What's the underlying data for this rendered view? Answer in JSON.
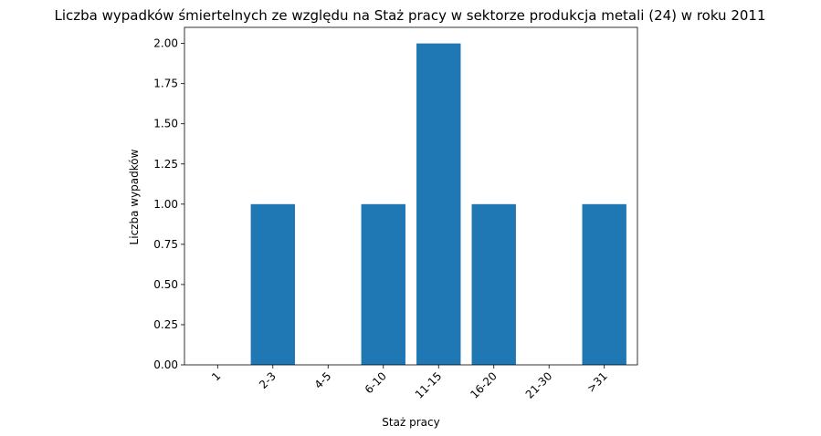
{
  "chart_data": {
    "type": "bar",
    "title": "Liczba wypadków śmiertelnych ze względu na Staż pracy w sektorze produkcja metali (24)   w roku 2011",
    "xlabel": "Staż pracy",
    "ylabel": "Liczba wypadków",
    "categories": [
      "1",
      "2-3",
      "4-5",
      "6-10",
      "11-15",
      "16-20",
      "21-30",
      ">31"
    ],
    "values": [
      0,
      1,
      0,
      1,
      2,
      1,
      0,
      1
    ],
    "ylim": [
      0,
      2.1
    ],
    "yticks": [
      "0.00",
      "0.25",
      "0.50",
      "0.75",
      "1.00",
      "1.25",
      "1.50",
      "1.75",
      "2.00"
    ],
    "bar_color": "#1f77b4",
    "grid": false,
    "legend": "none"
  }
}
